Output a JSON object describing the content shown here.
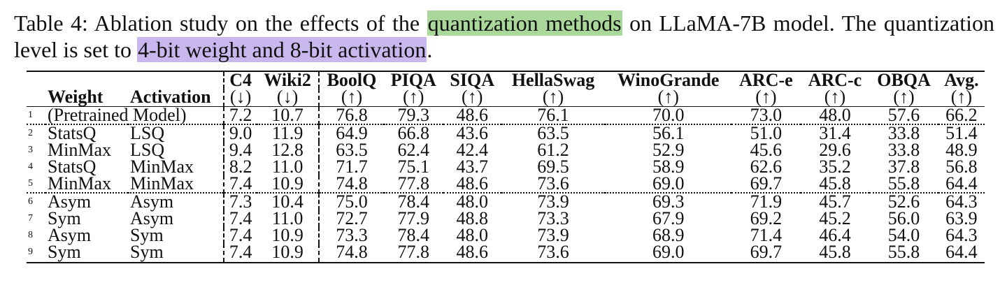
{
  "caption": {
    "part1": "Table 4: Ablation study on the effects of the ",
    "highlight1": "quantization methods",
    "part2": " on LLaMA-7B model. The quantization level is set to ",
    "highlight2": "4-bit weight and 8-bit activation",
    "part3": "."
  },
  "table": {
    "columns": [
      {
        "name": "C4",
        "arrow": "(↓)"
      },
      {
        "name": "Wiki2",
        "arrow": "(↓)"
      },
      {
        "name": "BoolQ",
        "arrow": "(↑)"
      },
      {
        "name": "PIQA",
        "arrow": "(↑)"
      },
      {
        "name": "SIQA",
        "arrow": "(↑)"
      },
      {
        "name": "HellaSwag",
        "arrow": "(↑)"
      },
      {
        "name": "WinoGrande",
        "arrow": "(↑)"
      },
      {
        "name": "ARC-e",
        "arrow": "(↑)"
      },
      {
        "name": "ARC-c",
        "arrow": "(↑)"
      },
      {
        "name": "OBQA",
        "arrow": "(↑)"
      },
      {
        "name": "Avg.",
        "arrow": "(↑)"
      }
    ],
    "weight_header": "Weight",
    "activation_header": "Activation",
    "rows": [
      {
        "n": "1",
        "label": "(Pretrained Model)",
        "values": [
          "7.2",
          "10.7",
          "76.8",
          "79.3",
          "48.6",
          "76.1",
          "70.0",
          "73.0",
          "48.0",
          "57.6",
          "66.2"
        ],
        "bold": []
      },
      {
        "n": "2",
        "weight": "StatsQ",
        "activation": "LSQ",
        "values": [
          "9.0",
          "11.9",
          "64.9",
          "66.8",
          "43.6",
          "63.5",
          "56.1",
          "51.0",
          "31.4",
          "33.8",
          "51.4"
        ],
        "bold": []
      },
      {
        "n": "3",
        "weight": "MinMax",
        "activation": "LSQ",
        "values": [
          "9.4",
          "12.8",
          "63.5",
          "62.4",
          "42.4",
          "61.2",
          "52.9",
          "45.6",
          "29.6",
          "33.8",
          "48.9"
        ],
        "bold": []
      },
      {
        "n": "4",
        "weight": "StatsQ",
        "activation": "MinMax",
        "values": [
          "8.2",
          "11.0",
          "71.7",
          "75.1",
          "43.7",
          "69.5",
          "58.9",
          "62.6",
          "35.2",
          "37.8",
          "56.8"
        ],
        "bold": []
      },
      {
        "n": "5",
        "weight": "MinMax",
        "activation": "MinMax",
        "values": [
          "7.4",
          "10.9",
          "74.8",
          "77.8",
          "48.6",
          "73.6",
          "69.0",
          "69.7",
          "45.8",
          "55.8",
          "64.4"
        ],
        "bold": [
          0,
          1,
          10
        ]
      },
      {
        "n": "6",
        "weight": "Asym",
        "activation": "Asym",
        "values": [
          "7.3",
          "10.4",
          "75.0",
          "78.4",
          "48.0",
          "73.9",
          "69.3",
          "71.9",
          "45.7",
          "52.6",
          "64.3"
        ],
        "bold": []
      },
      {
        "n": "7",
        "weight": "Sym",
        "activation": "Asym",
        "values": [
          "7.4",
          "11.0",
          "72.7",
          "77.9",
          "48.8",
          "73.3",
          "67.9",
          "69.2",
          "45.2",
          "56.0",
          "63.9"
        ],
        "bold": []
      },
      {
        "n": "8",
        "weight": "Asym",
        "activation": "Sym",
        "values": [
          "7.4",
          "10.9",
          "73.3",
          "78.4",
          "48.0",
          "73.9",
          "68.9",
          "71.4",
          "46.4",
          "54.0",
          "64.3"
        ],
        "bold": []
      },
      {
        "n": "9",
        "weight": "Sym",
        "activation": "Sym",
        "values": [
          "7.4",
          "10.9",
          "74.8",
          "77.8",
          "48.6",
          "73.6",
          "69.0",
          "69.7",
          "45.8",
          "55.8",
          "64.4"
        ],
        "bold": [
          0,
          1,
          10
        ]
      }
    ]
  }
}
